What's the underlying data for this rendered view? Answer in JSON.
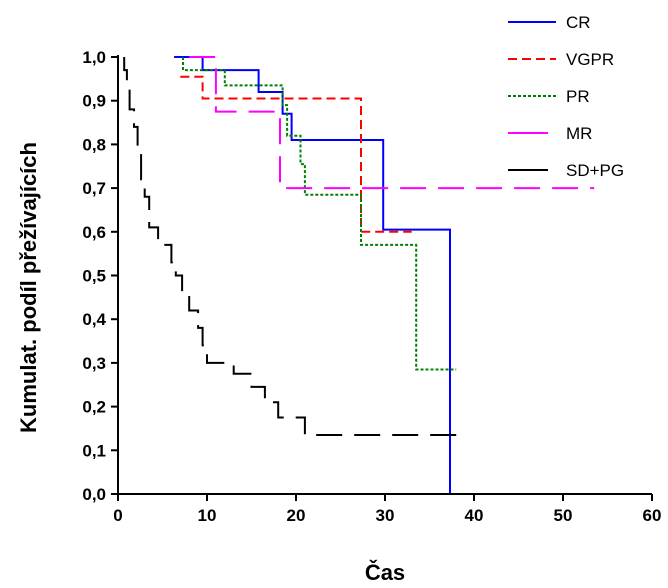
{
  "chart_data": {
    "type": "line",
    "subtype": "kaplan-meier-step",
    "title": "",
    "xlabel": "Čas",
    "ylabel": "Kumulat. podíl přežívajících",
    "xlim": [
      0,
      60
    ],
    "ylim": [
      0,
      1
    ],
    "x_ticks": [
      "0",
      "10",
      "20",
      "30",
      "40",
      "50",
      "60"
    ],
    "y_ticks": [
      "0,0",
      "0,1",
      "0,2",
      "0,3",
      "0,4",
      "0,5",
      "0,6",
      "0,7",
      "0,8",
      "0,9",
      "1,0"
    ],
    "grid": false,
    "legend_position": "top-right",
    "series": [
      {
        "name": "CR",
        "color": "#0000ff",
        "dash": "solid",
        "points": [
          [
            6.3,
            1.0
          ],
          [
            9.5,
            1.0
          ],
          [
            9.5,
            0.97
          ],
          [
            15.8,
            0.97
          ],
          [
            15.8,
            0.92
          ],
          [
            18.5,
            0.92
          ],
          [
            18.5,
            0.87
          ],
          [
            19.5,
            0.87
          ],
          [
            19.5,
            0.81
          ],
          [
            29.8,
            0.81
          ],
          [
            29.8,
            0.605
          ],
          [
            37.3,
            0.605
          ],
          [
            37.3,
            0.0
          ]
        ]
      },
      {
        "name": "VGPR",
        "color": "#ff0000",
        "dash": "dashed",
        "points": [
          [
            7.0,
            0.955
          ],
          [
            9.5,
            0.955
          ],
          [
            9.5,
            0.905
          ],
          [
            27.3,
            0.905
          ],
          [
            27.3,
            0.6
          ],
          [
            33.0,
            0.6
          ]
        ]
      },
      {
        "name": "PR",
        "color": "#008000",
        "dash": "dotted",
        "points": [
          [
            7.3,
            1.0
          ],
          [
            7.3,
            0.97
          ],
          [
            12.0,
            0.97
          ],
          [
            12.0,
            0.935
          ],
          [
            18.5,
            0.935
          ],
          [
            18.5,
            0.89
          ],
          [
            19.0,
            0.89
          ],
          [
            19.0,
            0.82
          ],
          [
            20.5,
            0.82
          ],
          [
            20.5,
            0.755
          ],
          [
            21.0,
            0.755
          ],
          [
            21.0,
            0.685
          ],
          [
            27.3,
            0.685
          ],
          [
            27.3,
            0.57
          ],
          [
            33.5,
            0.57
          ],
          [
            33.5,
            0.285
          ],
          [
            38.0,
            0.285
          ]
        ]
      },
      {
        "name": "MR",
        "color": "#ff00ff",
        "dash": "longdash",
        "points": [
          [
            8.0,
            1.0
          ],
          [
            11.0,
            1.0
          ],
          [
            11.0,
            0.875
          ],
          [
            18.2,
            0.875
          ],
          [
            18.2,
            0.7
          ],
          [
            53.5,
            0.7
          ]
        ]
      },
      {
        "name": "SD+PG",
        "color": "#000000",
        "dash": "longdash",
        "points": [
          [
            0.7,
            1.0
          ],
          [
            0.7,
            0.97
          ],
          [
            1.0,
            0.97
          ],
          [
            1.0,
            0.94
          ],
          [
            1.3,
            0.94
          ],
          [
            1.3,
            0.88
          ],
          [
            1.8,
            0.88
          ],
          [
            1.8,
            0.84
          ],
          [
            2.2,
            0.84
          ],
          [
            2.2,
            0.79
          ],
          [
            2.6,
            0.79
          ],
          [
            2.6,
            0.72
          ],
          [
            3.0,
            0.72
          ],
          [
            3.0,
            0.68
          ],
          [
            3.5,
            0.68
          ],
          [
            3.5,
            0.61
          ],
          [
            4.5,
            0.61
          ],
          [
            4.5,
            0.57
          ],
          [
            6.0,
            0.57
          ],
          [
            6.0,
            0.53
          ],
          [
            6.5,
            0.53
          ],
          [
            6.5,
            0.5
          ],
          [
            7.2,
            0.5
          ],
          [
            7.2,
            0.46
          ],
          [
            8.0,
            0.46
          ],
          [
            8.0,
            0.42
          ],
          [
            9.0,
            0.42
          ],
          [
            9.0,
            0.38
          ],
          [
            9.5,
            0.38
          ],
          [
            9.5,
            0.34
          ],
          [
            10.0,
            0.34
          ],
          [
            10.0,
            0.3
          ],
          [
            13.0,
            0.3
          ],
          [
            13.0,
            0.275
          ],
          [
            15.0,
            0.275
          ],
          [
            15.0,
            0.245
          ],
          [
            16.5,
            0.245
          ],
          [
            16.5,
            0.21
          ],
          [
            18.0,
            0.21
          ],
          [
            18.0,
            0.175
          ],
          [
            21.0,
            0.175
          ],
          [
            21.0,
            0.135
          ],
          [
            38.0,
            0.135
          ]
        ]
      }
    ]
  }
}
